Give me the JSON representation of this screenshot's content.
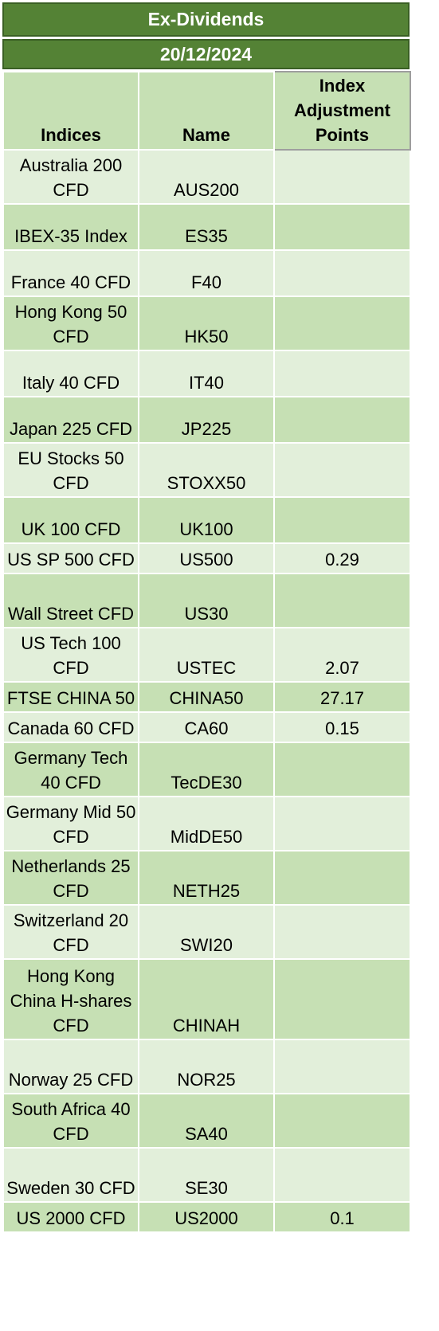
{
  "title": "Ex-Dividends",
  "date": "20/12/2024",
  "headers": {
    "indices": "Indices",
    "name": "Name",
    "adjustment": "Index Adjustment Points"
  },
  "rows": [
    {
      "index": "Australia 200 CFD",
      "name": "AUS200",
      "points": ""
    },
    {
      "index": "IBEX-35 Index",
      "name": "ES35",
      "points": ""
    },
    {
      "index": "France 40 CFD",
      "name": "F40",
      "points": ""
    },
    {
      "index": "Hong Kong 50 CFD",
      "name": "HK50",
      "points": ""
    },
    {
      "index": "Italy 40 CFD",
      "name": "IT40",
      "points": ""
    },
    {
      "index": "Japan 225 CFD",
      "name": "JP225",
      "points": ""
    },
    {
      "index": "EU Stocks 50 CFD",
      "name": "STOXX50",
      "points": ""
    },
    {
      "index": "UK 100 CFD",
      "name": "UK100",
      "points": ""
    },
    {
      "index": "US SP 500 CFD",
      "name": "US500",
      "points": "0.29"
    },
    {
      "index": "Wall Street CFD",
      "name": "US30",
      "points": ""
    },
    {
      "index": "US Tech 100 CFD",
      "name": "USTEC",
      "points": "2.07"
    },
    {
      "index": "FTSE CHINA 50",
      "name": "CHINA50",
      "points": "27.17"
    },
    {
      "index": "Canada 60 CFD",
      "name": "CA60",
      "points": "0.15"
    },
    {
      "index": "Germany Tech 40 CFD",
      "name": "TecDE30",
      "points": ""
    },
    {
      "index": "Germany Mid 50 CFD",
      "name": "MidDE50",
      "points": ""
    },
    {
      "index": "Netherlands 25 CFD",
      "name": "NETH25",
      "points": ""
    },
    {
      "index": "Switzerland 20 CFD",
      "name": "SWI20",
      "points": ""
    },
    {
      "index": "Hong Kong China H-shares CFD",
      "name": "CHINAH",
      "points": ""
    },
    {
      "index": "Norway 25 CFD",
      "name": "NOR25",
      "points": ""
    },
    {
      "index": "South Africa 40 CFD",
      "name": "SA40",
      "points": ""
    },
    {
      "index": "Sweden 30 CFD",
      "name": "SE30",
      "points": ""
    },
    {
      "index": "US 2000 CFD",
      "name": "US2000",
      "points": "0.1"
    }
  ],
  "colors": {
    "banner": "#548235",
    "row_light": "#e2efda",
    "row_dark": "#c6e0b4"
  }
}
